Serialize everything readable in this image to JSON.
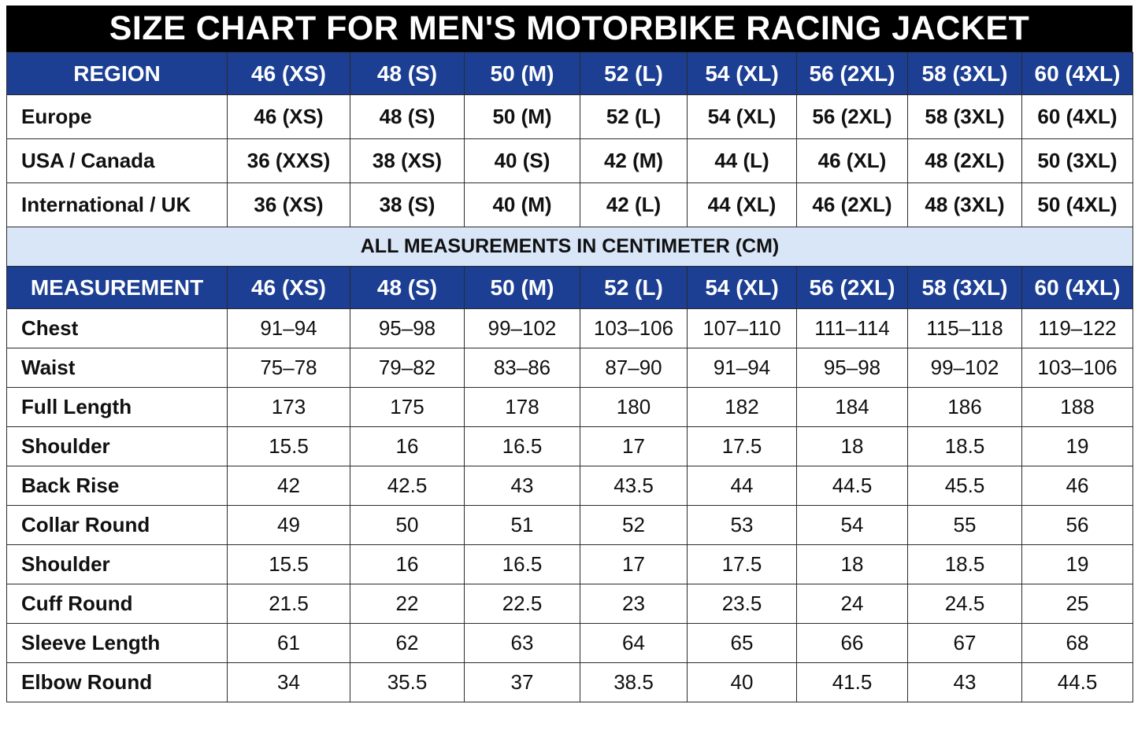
{
  "title": "SIZE CHART FOR MEN'S MOTORBIKE RACING JACKET",
  "colors": {
    "title_background": "#000000",
    "header_background": "#1c3f93",
    "note_background": "#d8e6f8",
    "text": "#111111"
  },
  "region_table": {
    "header": [
      "REGION",
      "46 (XS)",
      "48 (S)",
      "50 (M)",
      "52 (L)",
      "54 (XL)",
      "56 (2XL)",
      "58 (3XL)",
      "60 (4XL)"
    ],
    "rows": [
      [
        "Europe",
        "46 (XS)",
        "48 (S)",
        "50 (M)",
        "52 (L)",
        "54 (XL)",
        "56 (2XL)",
        "58 (3XL)",
        "60 (4XL)"
      ],
      [
        "USA / Canada",
        "36 (XXS)",
        "38 (XS)",
        "40 (S)",
        "42 (M)",
        "44 (L)",
        "46 (XL)",
        "48 (2XL)",
        "50 (3XL)"
      ],
      [
        "International / UK",
        "36 (XS)",
        "38 (S)",
        "40 (M)",
        "42 (L)",
        "44 (XL)",
        "46 (2XL)",
        "48 (3XL)",
        "50 (4XL)"
      ]
    ]
  },
  "note": "ALL MEASUREMENTS IN CENTIMETER (CM)",
  "measurement_table": {
    "header": [
      "MEASUREMENT",
      "46 (XS)",
      "48 (S)",
      "50 (M)",
      "52 (L)",
      "54 (XL)",
      "56 (2XL)",
      "58 (3XL)",
      "60 (4XL)"
    ],
    "rows": [
      [
        "Chest",
        "91–94",
        "95–98",
        "99–102",
        "103–106",
        "107–110",
        "111–114",
        "115–118",
        "119–122"
      ],
      [
        "Waist",
        "75–78",
        "79–82",
        "83–86",
        "87–90",
        "91–94",
        "95–98",
        "99–102",
        "103–106"
      ],
      [
        "Full Length",
        "173",
        "175",
        "178",
        "180",
        "182",
        "184",
        "186",
        "188"
      ],
      [
        "Shoulder",
        "15.5",
        "16",
        "16.5",
        "17",
        "17.5",
        "18",
        "18.5",
        "19"
      ],
      [
        "Back Rise",
        "42",
        "42.5",
        "43",
        "43.5",
        "44",
        "44.5",
        "45.5",
        "46"
      ],
      [
        "Collar Round",
        "49",
        "50",
        "51",
        "52",
        "53",
        "54",
        "55",
        "56"
      ],
      [
        "Shoulder",
        "15.5",
        "16",
        "16.5",
        "17",
        "17.5",
        "18",
        "18.5",
        "19"
      ],
      [
        "Cuff Round",
        "21.5",
        "22",
        "22.5",
        "23",
        "23.5",
        "24",
        "24.5",
        "25"
      ],
      [
        "Sleeve Length",
        "61",
        "62",
        "63",
        "64",
        "65",
        "66",
        "67",
        "68"
      ],
      [
        "Elbow Round",
        "34",
        "35.5",
        "37",
        "38.5",
        "40",
        "41.5",
        "43",
        "44.5"
      ]
    ]
  }
}
